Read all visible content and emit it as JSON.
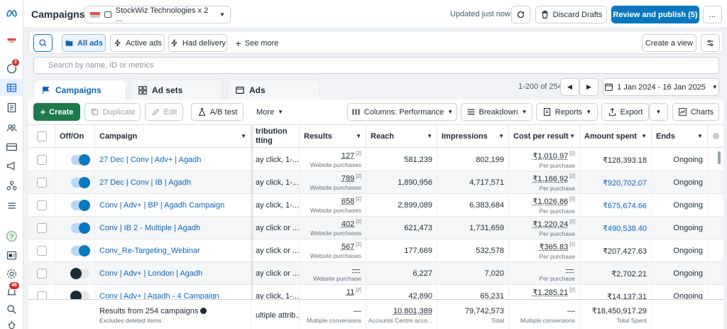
{
  "header": {
    "title": "Campaigns",
    "account_name": "StockWiz Technologies x 2 ...",
    "updated_text": "Updated just now",
    "discard_label": "Discard Drafts",
    "review_label": "Review and publish (5)",
    "more_label": "..."
  },
  "rail": {
    "notifications_badge": "2",
    "alerts_badge": "46"
  },
  "filters": {
    "all_ads": "All ads",
    "active_ads": "Active ads",
    "had_delivery": "Had delivery",
    "see_more": "See more",
    "create_view": "Create a view"
  },
  "search": {
    "placeholder": "Search by name, ID or metrics"
  },
  "tabs": {
    "campaigns": "Campaigns",
    "ad_sets": "Ad sets",
    "ads": "Ads"
  },
  "pager": {
    "range": "1-200 of 254",
    "date_range": "1 Jan 2024 - 16 Jan 2025"
  },
  "toolbar": {
    "create": "Create",
    "duplicate": "Duplicate",
    "edit": "Edit",
    "ab_test": "A/B test",
    "more": "More",
    "columns": "Columns: Performance",
    "breakdown": "Breakdown",
    "reports": "Reports",
    "export": "Export",
    "charts": "Charts"
  },
  "columns": {
    "off_on": "Off/On",
    "campaign": "Campaign",
    "attribution_1": "tribution",
    "attribution_2": "tting",
    "results": "Results",
    "reach": "Reach",
    "impressions": "Impressions",
    "cost_per_result": "Cost per result",
    "amount_spent": "Amount spent",
    "ends": "Ends"
  },
  "rows": [
    {
      "name": "27 Dec | Conv | Adv+ | Agadh",
      "on": true,
      "attr": "ay click, 1-...",
      "results": "127",
      "results_sup": "[2]",
      "results_sub": "Website purchases",
      "reach": "581,239",
      "impressions": "802,199",
      "cpr": "₹1,010.97",
      "cpr_sup": "[2]",
      "cpr_sub": "Per purchase",
      "spent": "₹128,393.18",
      "spent_link": false,
      "ends": "Ongoing"
    },
    {
      "name": "27 Dec | Conv | IB | Agadh",
      "on": true,
      "attr": "ay click, 1-...",
      "results": "789",
      "results_sup": "[2]",
      "results_sub": "Website purchases",
      "reach": "1,890,956",
      "impressions": "4,717,571",
      "cpr": "₹1,166.92",
      "cpr_sup": "[2]",
      "cpr_sub": "Per purchase",
      "spent": "₹920,702.07",
      "spent_link": true,
      "ends": "Ongoing"
    },
    {
      "name": "Conv | Adv+ | BP | Agadh Campaign",
      "on": true,
      "attr": "ay click, 1-...",
      "results": "658",
      "results_sup": "[2]",
      "results_sub": "Website purchases",
      "reach": "2,899,089",
      "impressions": "6,383,684",
      "cpr": "₹1,026.86",
      "cpr_sup": "[2]",
      "cpr_sub": "Per purchase",
      "spent": "₹675,674.66",
      "spent_link": true,
      "ends": "Ongoing"
    },
    {
      "name": "Conv | IB 2 - Multiple | Agadh",
      "on": true,
      "attr": "ay click or ...",
      "results": "402",
      "results_sup": "[2]",
      "results_sub": "Website purchases",
      "reach": "621,473",
      "impressions": "1,731,659",
      "cpr": "₹1,220.24",
      "cpr_sup": "[2]",
      "cpr_sub": "Per purchase",
      "spent": "₹490,538.40",
      "spent_link": true,
      "ends": "Ongoing"
    },
    {
      "name": "Conv_Re-Targeting_Webinar",
      "on": true,
      "attr": "ay click or ...",
      "results": "567",
      "results_sup": "[2]",
      "results_sub": "Website purchases",
      "reach": "177,669",
      "impressions": "532,578",
      "cpr": "₹365.83",
      "cpr_sup": "[2]",
      "cpr_sub": "Per purchase",
      "spent": "₹207,427.63",
      "spent_link": false,
      "ends": "Ongoing"
    },
    {
      "name": "Conv | Adv+ | London | Agadh",
      "on": false,
      "attr": "ay click or ...",
      "results": "—",
      "results_sup": "",
      "results_sub": "Website purchase",
      "reach": "6,227",
      "impressions": "7,020",
      "cpr": "—",
      "cpr_sup": "",
      "cpr_sub": "Per purchase",
      "spent": "₹2,702.21",
      "spent_link": false,
      "ends": "Ongoing"
    },
    {
      "name": "Conv | Adv+ | Agadh - 4 Campaign",
      "on": false,
      "attr": "ay click, 1-...",
      "results": "11",
      "results_sup": "[2]",
      "results_sub": "Website purchases",
      "reach": "42,890",
      "impressions": "65,231",
      "cpr": "₹1,285.21",
      "cpr_sup": "[2]",
      "cpr_sub": "Per purchase",
      "spent": "₹14,137.31",
      "spent_link": false,
      "ends": "Ongoing"
    }
  ],
  "footer": {
    "results_from": "Results from 254 campaigns",
    "excludes": "Excludes deleted items",
    "attr": "ultiple attrib...",
    "results": "—",
    "results_sub": "Multiple conversions",
    "reach": "10,801,389",
    "reach_sub": "Accounts Centre acco...",
    "impressions": "79,742,573",
    "impressions_sub": "Total",
    "cpr": "—",
    "cpr_sub": "Multiple conversions",
    "spent": "₹18,450,917.29",
    "spent_sub": "Total Spent"
  },
  "icons": {
    "logo": "meta-logo-icon",
    "colors": {
      "primary": "#0a78be",
      "link": "#0a65c2",
      "create": "#1e7a4b"
    }
  }
}
